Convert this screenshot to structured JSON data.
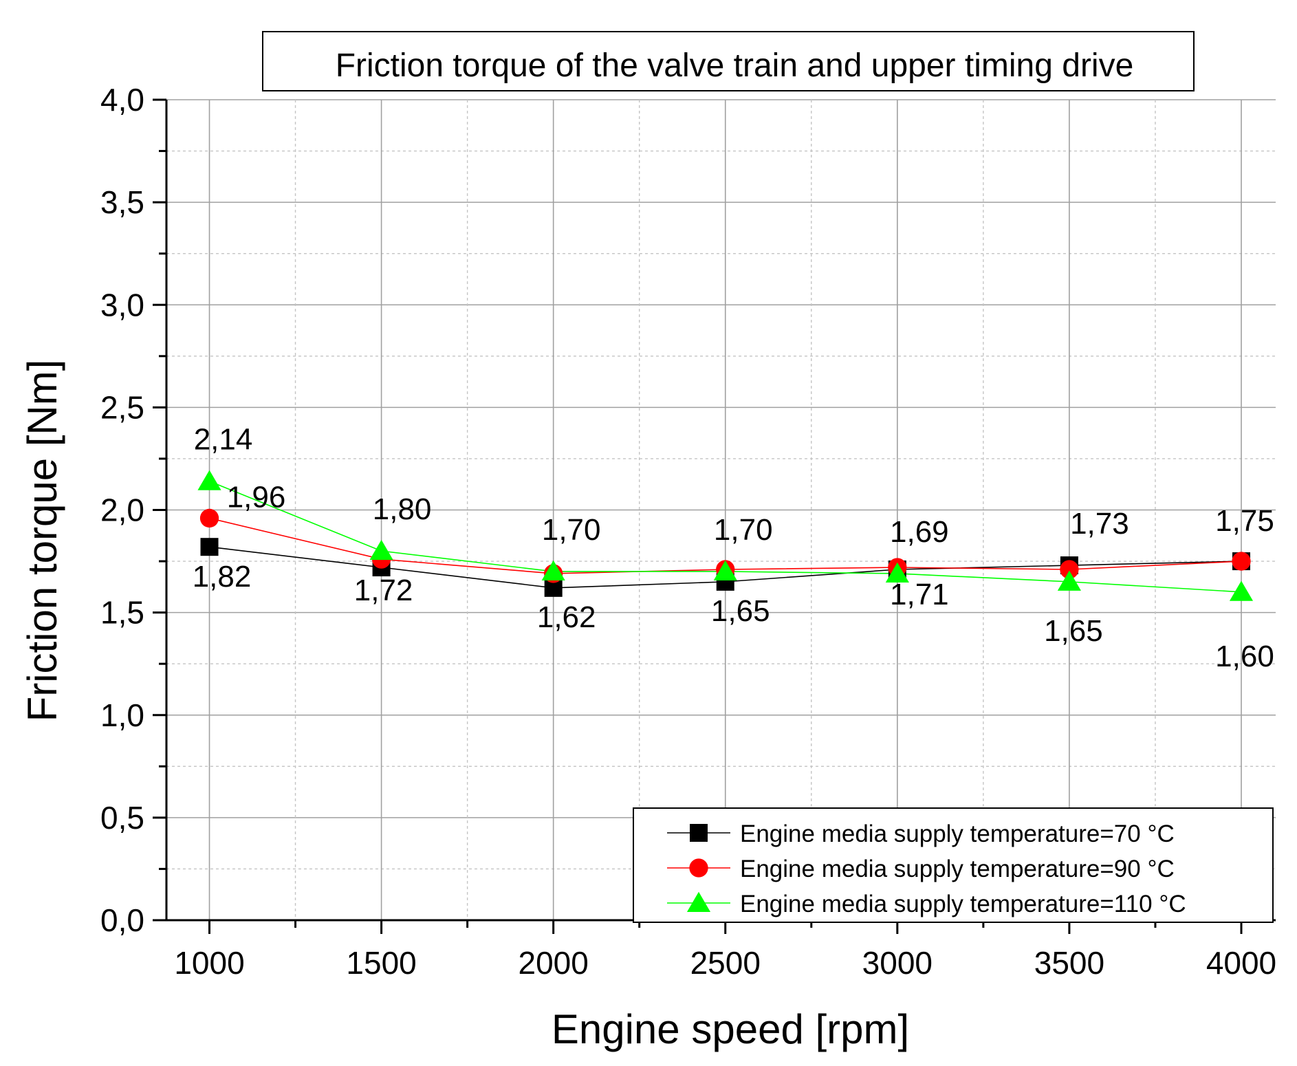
{
  "chart_data": {
    "type": "line",
    "title": "Friction torque of the valve train and upper timing drive",
    "xlabel": "Engine speed [rpm]",
    "ylabel": "Friction torque [Nm]",
    "x": [
      1000,
      1500,
      2000,
      2500,
      3000,
      3500,
      4000
    ],
    "xlim": [
      875,
      4100
    ],
    "ylim": [
      0.0,
      4.0
    ],
    "x_ticks": [
      1000,
      1500,
      2000,
      2500,
      3000,
      3500,
      4000
    ],
    "x_tick_labels": [
      "1000",
      "1500",
      "2000",
      "2500",
      "3000",
      "3500",
      "4000"
    ],
    "y_ticks": [
      0.0,
      0.5,
      1.0,
      1.5,
      2.0,
      2.5,
      3.0,
      3.5,
      4.0
    ],
    "y_tick_labels": [
      "0,0",
      "0,5",
      "1,0",
      "1,5",
      "2,0",
      "2,5",
      "3,0",
      "3,5",
      "4,0"
    ],
    "grid": true,
    "legend_position": "bottom-right",
    "series": [
      {
        "name": "Engine media supply temperature=70 °C",
        "color": "#000000",
        "marker": "square",
        "values": [
          1.82,
          1.72,
          1.62,
          1.65,
          1.71,
          1.73,
          1.75
        ]
      },
      {
        "name": "Engine media supply temperature=90 °C",
        "color": "#ff0000",
        "marker": "circle",
        "values": [
          1.96,
          1.76,
          1.69,
          1.71,
          1.72,
          1.71,
          1.75
        ]
      },
      {
        "name": "Engine media supply temperature=110 °C",
        "color": "#00ff00",
        "marker": "triangle",
        "values": [
          2.14,
          1.8,
          1.7,
          1.7,
          1.69,
          1.65,
          1.6
        ]
      }
    ],
    "annotations": [
      {
        "text": "2,14",
        "x": 1000,
        "y": 2.14,
        "series": 2
      },
      {
        "text": "1,96",
        "x": 1000,
        "y": 1.96,
        "series": 1
      },
      {
        "text": "1,82",
        "x": 1000,
        "y": 1.82,
        "series": 0
      },
      {
        "text": "1,80",
        "x": 1500,
        "y": 1.8,
        "series": 2
      },
      {
        "text": "1,72",
        "x": 1500,
        "y": 1.72,
        "series": 0
      },
      {
        "text": "1,70",
        "x": 2000,
        "y": 1.7,
        "series": 2
      },
      {
        "text": "1,62",
        "x": 2000,
        "y": 1.62,
        "series": 0
      },
      {
        "text": "1,70",
        "x": 2500,
        "y": 1.7,
        "series": 2
      },
      {
        "text": "1,65",
        "x": 2500,
        "y": 1.65,
        "series": 0
      },
      {
        "text": "1,69",
        "x": 3000,
        "y": 1.69,
        "series": 2
      },
      {
        "text": "1,71",
        "x": 3000,
        "y": 1.71,
        "series": 0
      },
      {
        "text": "1,73",
        "x": 3500,
        "y": 1.73,
        "series": 0
      },
      {
        "text": "1,65",
        "x": 3500,
        "y": 1.65,
        "series": 2
      },
      {
        "text": "1,75",
        "x": 4000,
        "y": 1.75,
        "series": 0
      },
      {
        "text": "1,60",
        "x": 4000,
        "y": 1.6,
        "series": 2
      }
    ]
  }
}
